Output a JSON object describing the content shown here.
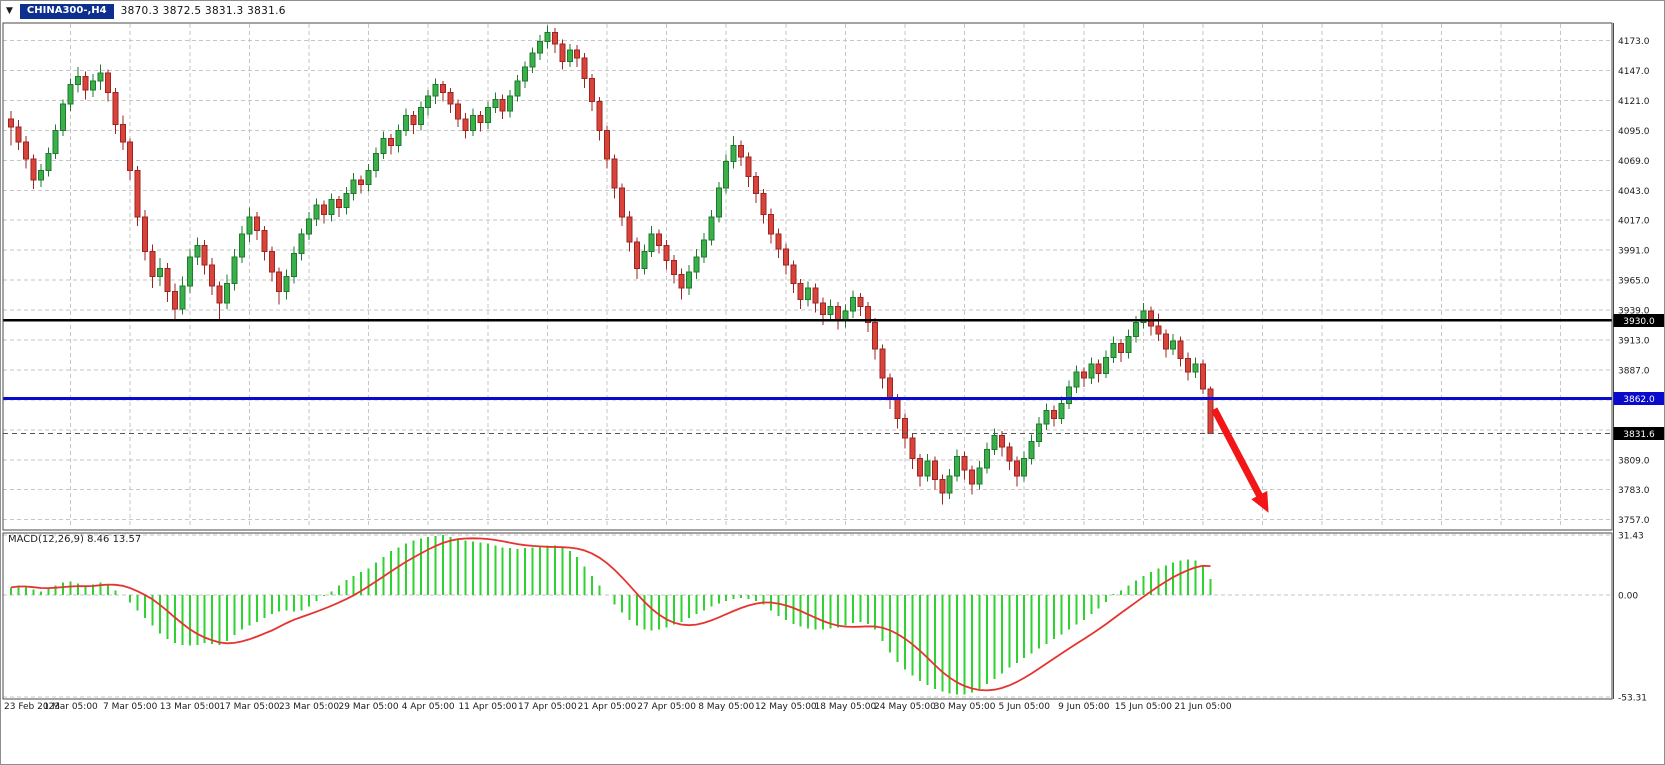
{
  "header": {
    "dropdown_icon": "▼",
    "symbol_tab": "CHINA300-,H4",
    "ohlc_text": "3870.3 3872.5 3831.3 3831.6"
  },
  "colors": {
    "background": "#ffffff",
    "grid": "#c6c6c6",
    "panel_border": "#4a4a4a",
    "text": "#1a1a1a",
    "candle_up": "#3bb04a",
    "candle_up_border": "#1e7a2e",
    "candle_down": "#d8443a",
    "candle_down_border": "#9e2323",
    "macd_histogram": "#2fd32f",
    "macd_signal": "#e53430",
    "arrow": "#f21616",
    "badge_text": "#ffffff",
    "symbol_tab_bg": "#0d2f8d"
  },
  "chart_data": [
    {
      "type": "candlestick",
      "symbol": "CHINA300-",
      "timeframe": "H4",
      "ylim": [
        3751.5,
        4186.5
      ],
      "y_ticks": [
        4173,
        4147,
        4121,
        4095,
        4069,
        4043,
        4017,
        3991,
        3965,
        3939,
        3913,
        3887,
        3861,
        3835,
        3809,
        3783,
        3757
      ],
      "x_labels": [
        "23 Feb 2023",
        "1 Mar 05:00",
        "7 Mar 05:00",
        "13 Mar 05:00",
        "17 Mar 05:00",
        "23 Mar 05:00",
        "29 Mar 05:00",
        "4 Apr 05:00",
        "11 Apr 05:00",
        "17 Apr 05:00",
        "21 Apr 05:00",
        "27 Apr 05:00",
        "8 May 05:00",
        "12 May 05:00",
        "18 May 05:00",
        "24 May 05:00",
        "30 May 05:00",
        "5 Jun 05:00",
        "9 Jun 05:00",
        "15 Jun 05:00",
        "21 Jun 05:00"
      ],
      "bars_per_x_label": 8,
      "hlines": [
        {
          "price": 3930.0,
          "label": "3930.0",
          "color": "#000000",
          "badge_bg": "#000000",
          "width": 2.5,
          "style": "solid"
        },
        {
          "price": 3862.0,
          "label": "3862.0",
          "color": "#0a0acd",
          "badge_bg": "#0a0acd",
          "width": 3,
          "style": "solid"
        },
        {
          "price": 3831.6,
          "label": "3831.6",
          "color": "#555555",
          "badge_bg": "#000000",
          "width": 1,
          "style": "dashed"
        }
      ],
      "arrow": {
        "from_bar": 161.5,
        "from_price": 3853,
        "to_bar": 168.8,
        "to_price": 3763
      },
      "candles": [
        [
          4105,
          4112,
          4082,
          4098
        ],
        [
          4098,
          4104,
          4078,
          4085
        ],
        [
          4085,
          4090,
          4062,
          4070
        ],
        [
          4070,
          4074,
          4044,
          4052
        ],
        [
          4052,
          4066,
          4046,
          4060
        ],
        [
          4060,
          4080,
          4055,
          4075
        ],
        [
          4075,
          4100,
          4070,
          4095
        ],
        [
          4095,
          4122,
          4090,
          4118
        ],
        [
          4118,
          4140,
          4112,
          4135
        ],
        [
          4135,
          4150,
          4128,
          4142
        ],
        [
          4142,
          4146,
          4122,
          4130
        ],
        [
          4130,
          4144,
          4124,
          4138
        ],
        [
          4138,
          4152,
          4130,
          4145
        ],
        [
          4145,
          4148,
          4120,
          4128
        ],
        [
          4128,
          4132,
          4092,
          4100
        ],
        [
          4100,
          4108,
          4078,
          4085
        ],
        [
          4085,
          4088,
          4052,
          4060
        ],
        [
          4060,
          4064,
          4012,
          4020
        ],
        [
          4020,
          4026,
          3982,
          3990
        ],
        [
          3990,
          3996,
          3958,
          3968
        ],
        [
          3968,
          3984,
          3960,
          3975
        ],
        [
          3975,
          3980,
          3946,
          3955
        ],
        [
          3955,
          3962,
          3930,
          3940
        ],
        [
          3940,
          3968,
          3935,
          3960
        ],
        [
          3960,
          3992,
          3954,
          3985
        ],
        [
          3985,
          4002,
          3978,
          3995
        ],
        [
          3995,
          4000,
          3970,
          3978
        ],
        [
          3978,
          3984,
          3952,
          3960
        ],
        [
          3960,
          3964,
          3931,
          3945
        ],
        [
          3945,
          3970,
          3940,
          3962
        ],
        [
          3962,
          3992,
          3956,
          3985
        ],
        [
          3985,
          4012,
          3980,
          4005
        ],
        [
          4005,
          4028,
          3998,
          4020
        ],
        [
          4020,
          4024,
          4000,
          4008
        ],
        [
          4008,
          4012,
          3982,
          3990
        ],
        [
          3990,
          3994,
          3964,
          3972
        ],
        [
          3972,
          3976,
          3944,
          3955
        ],
        [
          3955,
          3974,
          3948,
          3968
        ],
        [
          3968,
          3994,
          3962,
          3988
        ],
        [
          3988,
          4010,
          3982,
          4005
        ],
        [
          4005,
          4024,
          4000,
          4018
        ],
        [
          4018,
          4036,
          4012,
          4030
        ],
        [
          4030,
          4034,
          4014,
          4022
        ],
        [
          4022,
          4040,
          4016,
          4035
        ],
        [
          4035,
          4038,
          4020,
          4028
        ],
        [
          4028,
          4046,
          4022,
          4040
        ],
        [
          4040,
          4058,
          4034,
          4052
        ],
        [
          4052,
          4056,
          4040,
          4048
        ],
        [
          4048,
          4066,
          4042,
          4060
        ],
        [
          4060,
          4080,
          4054,
          4075
        ],
        [
          4075,
          4094,
          4070,
          4088
        ],
        [
          4088,
          4092,
          4074,
          4082
        ],
        [
          4082,
          4100,
          4076,
          4095
        ],
        [
          4095,
          4114,
          4090,
          4108
        ],
        [
          4108,
          4112,
          4092,
          4100
        ],
        [
          4100,
          4120,
          4095,
          4115
        ],
        [
          4115,
          4130,
          4108,
          4125
        ],
        [
          4125,
          4140,
          4118,
          4135
        ],
        [
          4135,
          4138,
          4120,
          4128
        ],
        [
          4128,
          4132,
          4110,
          4118
        ],
        [
          4118,
          4122,
          4098,
          4105
        ],
        [
          4105,
          4110,
          4088,
          4095
        ],
        [
          4095,
          4114,
          4090,
          4108
        ],
        [
          4108,
          4112,
          4094,
          4102
        ],
        [
          4102,
          4120,
          4096,
          4115
        ],
        [
          4115,
          4128,
          4110,
          4122
        ],
        [
          4122,
          4126,
          4105,
          4112
        ],
        [
          4112,
          4130,
          4106,
          4125
        ],
        [
          4125,
          4143,
          4120,
          4138
        ],
        [
          4138,
          4155,
          4132,
          4150
        ],
        [
          4150,
          4167,
          4145,
          4162
        ],
        [
          4162,
          4178,
          4156,
          4172
        ],
        [
          4172,
          4186,
          4166,
          4180
        ],
        [
          4180,
          4184,
          4162,
          4170
        ],
        [
          4170,
          4174,
          4148,
          4155
        ],
        [
          4155,
          4170,
          4150,
          4165
        ],
        [
          4165,
          4169,
          4150,
          4158
        ],
        [
          4158,
          4162,
          4132,
          4140
        ],
        [
          4140,
          4144,
          4112,
          4120
        ],
        [
          4120,
          4124,
          4086,
          4095
        ],
        [
          4095,
          4099,
          4062,
          4070
        ],
        [
          4070,
          4074,
          4036,
          4045
        ],
        [
          4045,
          4049,
          4012,
          4020
        ],
        [
          4020,
          4025,
          3990,
          3998
        ],
        [
          3998,
          4002,
          3966,
          3975
        ],
        [
          3975,
          3996,
          3970,
          3990
        ],
        [
          3990,
          4012,
          3985,
          4005
        ],
        [
          4005,
          4009,
          3988,
          3995
        ],
        [
          3995,
          4000,
          3974,
          3982
        ],
        [
          3982,
          3987,
          3962,
          3970
        ],
        [
          3970,
          3975,
          3948,
          3958
        ],
        [
          3958,
          3978,
          3952,
          3972
        ],
        [
          3972,
          3992,
          3966,
          3985
        ],
        [
          3985,
          4006,
          3980,
          4000
        ],
        [
          4000,
          4026,
          3995,
          4020
        ],
        [
          4020,
          4050,
          4015,
          4045
        ],
        [
          4045,
          4074,
          4040,
          4068
        ],
        [
          4068,
          4090,
          4062,
          4082
        ],
        [
          4082,
          4086,
          4064,
          4072
        ],
        [
          4072,
          4076,
          4046,
          4055
        ],
        [
          4055,
          4059,
          4032,
          4040
        ],
        [
          4040,
          4044,
          4014,
          4022
        ],
        [
          4022,
          4027,
          3997,
          4005
        ],
        [
          4005,
          4010,
          3984,
          3992
        ],
        [
          3992,
          3997,
          3970,
          3978
        ],
        [
          3978,
          3982,
          3954,
          3962
        ],
        [
          3962,
          3966,
          3940,
          3948
        ],
        [
          3948,
          3964,
          3942,
          3958
        ],
        [
          3958,
          3962,
          3937,
          3945
        ],
        [
          3945,
          3950,
          3926,
          3935
        ],
        [
          3935,
          3948,
          3929,
          3942
        ],
        [
          3942,
          3946,
          3922,
          3930
        ],
        [
          3930,
          3944,
          3924,
          3938
        ],
        [
          3938,
          3956,
          3932,
          3950
        ],
        [
          3950,
          3954,
          3934,
          3942
        ],
        [
          3942,
          3946,
          3920,
          3928
        ],
        [
          3928,
          3932,
          3896,
          3905
        ],
        [
          3905,
          3909,
          3871,
          3880
        ],
        [
          3880,
          3884,
          3853,
          3862
        ],
        [
          3862,
          3866,
          3836,
          3845
        ],
        [
          3845,
          3849,
          3819,
          3828
        ],
        [
          3828,
          3832,
          3801,
          3810
        ],
        [
          3810,
          3814,
          3786,
          3795
        ],
        [
          3795,
          3814,
          3790,
          3808
        ],
        [
          3808,
          3812,
          3783,
          3792
        ],
        [
          3792,
          3796,
          3770,
          3780
        ],
        [
          3780,
          3801,
          3775,
          3795
        ],
        [
          3795,
          3818,
          3790,
          3812
        ],
        [
          3812,
          3816,
          3792,
          3800
        ],
        [
          3800,
          3804,
          3779,
          3788
        ],
        [
          3788,
          3808,
          3783,
          3802
        ],
        [
          3802,
          3824,
          3797,
          3818
        ],
        [
          3818,
          3836,
          3813,
          3830
        ],
        [
          3830,
          3834,
          3812,
          3820
        ],
        [
          3820,
          3824,
          3800,
          3808
        ],
        [
          3808,
          3812,
          3786,
          3795
        ],
        [
          3795,
          3816,
          3790,
          3810
        ],
        [
          3810,
          3831,
          3805,
          3825
        ],
        [
          3825,
          3846,
          3820,
          3840
        ],
        [
          3840,
          3858,
          3835,
          3852
        ],
        [
          3852,
          3856,
          3838,
          3845
        ],
        [
          3845,
          3864,
          3840,
          3858
        ],
        [
          3858,
          3878,
          3853,
          3872
        ],
        [
          3872,
          3891,
          3867,
          3885
        ],
        [
          3885,
          3889,
          3872,
          3880
        ],
        [
          3880,
          3898,
          3875,
          3892
        ],
        [
          3892,
          3896,
          3876,
          3884
        ],
        [
          3884,
          3904,
          3880,
          3898
        ],
        [
          3898,
          3916,
          3893,
          3910
        ],
        [
          3910,
          3914,
          3894,
          3902
        ],
        [
          3902,
          3922,
          3897,
          3916
        ],
        [
          3916,
          3934,
          3911,
          3928
        ],
        [
          3928,
          3945,
          3923,
          3938
        ],
        [
          3938,
          3942,
          3917,
          3925
        ],
        [
          3925,
          3936,
          3912,
          3918
        ],
        [
          3918,
          3922,
          3898,
          3905
        ],
        [
          3905,
          3918,
          3900,
          3912
        ],
        [
          3912,
          3916,
          3890,
          3897
        ],
        [
          3897,
          3902,
          3878,
          3885
        ],
        [
          3885,
          3898,
          3880,
          3892
        ],
        [
          3892,
          3896,
          3866,
          3870.3
        ],
        [
          3870.3,
          3872.5,
          3831.3,
          3831.6
        ]
      ]
    },
    {
      "type": "macd",
      "label": "MACD(12,26,9) 8.46 13.57",
      "macd_value": 8.46,
      "signal_value": 13.57,
      "signal_period": 9,
      "ylim": [
        -53.31,
        31.43
      ],
      "y_ticks": [
        31.43,
        0.0,
        -53.31
      ],
      "histogram": [
        4,
        5,
        4.5,
        3,
        2,
        3.5,
        5,
        6.5,
        7,
        6,
        4.5,
        5.5,
        6.5,
        5,
        2.5,
        0,
        -4,
        -8,
        -12,
        -16,
        -20,
        -23,
        -25,
        -26,
        -26.5,
        -26,
        -25,
        -25.5,
        -26,
        -24,
        -21,
        -18,
        -16,
        -14,
        -12,
        -10,
        -8.5,
        -8,
        -8.5,
        -8,
        -6,
        -3,
        -0.5,
        2,
        5,
        8,
        10,
        12,
        14,
        17,
        20,
        23,
        25,
        27,
        28.5,
        29.5,
        30.5,
        31,
        31.4,
        30.5,
        29.5,
        28.5,
        28,
        27.5,
        27,
        26,
        25,
        24.5,
        24,
        24.5,
        25,
        25.5,
        26,
        26,
        25,
        23,
        20,
        15,
        10,
        5,
        0,
        -5,
        -9,
        -13,
        -16,
        -18,
        -18.5,
        -18,
        -17,
        -15.5,
        -14,
        -12,
        -10,
        -8,
        -6,
        -4.5,
        -3,
        -2,
        -1.5,
        -2,
        -3,
        -5,
        -8,
        -11,
        -13,
        -15,
        -16.5,
        -17.5,
        -18,
        -18,
        -17.5,
        -17,
        -16,
        -14.5,
        -14,
        -15,
        -18,
        -24,
        -30,
        -35,
        -39,
        -42,
        -45,
        -47,
        -49,
        -50.5,
        -51.5,
        -52,
        -52,
        -51,
        -49,
        -46.5,
        -44,
        -41,
        -38,
        -35.5,
        -33,
        -30.5,
        -28,
        -25.5,
        -23,
        -20.5,
        -18,
        -15.5,
        -13,
        -10,
        -7,
        -3.5,
        0.5,
        2.5,
        5,
        7.5,
        10,
        12,
        14,
        15.5,
        17,
        18,
        18.5,
        18,
        15,
        8.46
      ]
    }
  ]
}
